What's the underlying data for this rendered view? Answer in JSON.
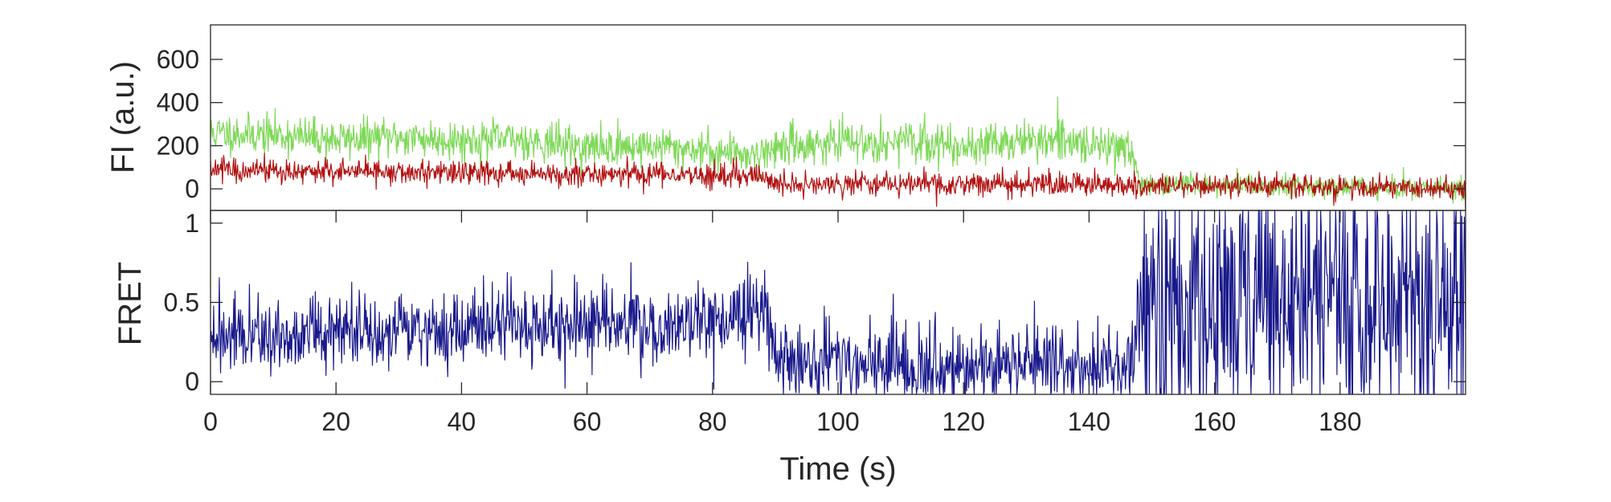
{
  "chart_data": [
    {
      "type": "line",
      "panel": "top",
      "title": "",
      "xlabel": "",
      "ylabel": "FI (a.u.)",
      "xlim": [
        0,
        200
      ],
      "ylim": [
        -100,
        760
      ],
      "yticks": [
        0,
        200,
        400,
        600
      ],
      "ytick_labels": [
        "0",
        "200",
        "400",
        "600"
      ],
      "grid": false,
      "colors": {
        "donor": "#7ed957",
        "acceptor": "#b31212"
      },
      "series": [
        {
          "color_key": "donor",
          "x": [
            0,
            10,
            20,
            30,
            40,
            50,
            60,
            70,
            80,
            88,
            90,
            100,
            110,
            120,
            130,
            140,
            147,
            148,
            160,
            170,
            180,
            190,
            200
          ],
          "y": [
            260,
            250,
            230,
            240,
            225,
            230,
            190,
            200,
            175,
            160,
            195,
            215,
            220,
            200,
            225,
            210,
            190,
            15,
            20,
            15,
            10,
            5,
            0
          ]
        },
        {
          "color_key": "acceptor",
          "x": [
            0,
            10,
            20,
            30,
            40,
            50,
            60,
            70,
            80,
            88,
            90,
            100,
            110,
            120,
            130,
            140,
            147,
            148,
            160,
            170,
            180,
            190,
            200
          ],
          "y": [
            90,
            85,
            80,
            75,
            75,
            70,
            70,
            70,
            60,
            60,
            20,
            20,
            25,
            20,
            25,
            20,
            15,
            15,
            15,
            12,
            10,
            5,
            -10
          ]
        }
      ]
    },
    {
      "type": "line",
      "panel": "bottom",
      "title": "",
      "xlabel": "Time (s)",
      "ylabel": "FRET",
      "xlim": [
        0,
        200
      ],
      "ylim": [
        -0.08,
        1.08
      ],
      "xticks": [
        0,
        20,
        40,
        60,
        80,
        100,
        120,
        140,
        160,
        180
      ],
      "xtick_labels": [
        "0",
        "20",
        "40",
        "60",
        "80",
        "100",
        "120",
        "140",
        "160",
        "180"
      ],
      "yticks": [
        0,
        0.5,
        1
      ],
      "ytick_labels": [
        "0",
        "0.5",
        "1"
      ],
      "grid": false,
      "colors": {
        "fret": "#1a1a8c"
      },
      "series": [
        {
          "color_key": "fret",
          "x": [
            0,
            10,
            20,
            30,
            40,
            50,
            60,
            70,
            80,
            88,
            90,
            100,
            110,
            120,
            130,
            140,
            147,
            148,
            160,
            170,
            180,
            190,
            200
          ],
          "y": [
            0.27,
            0.3,
            0.3,
            0.32,
            0.34,
            0.35,
            0.38,
            0.36,
            0.38,
            0.45,
            0.15,
            0.12,
            0.1,
            0.12,
            0.1,
            0.1,
            0.1,
            0.5,
            0.5,
            0.5,
            0.5,
            0.5,
            0.5
          ]
        }
      ]
    }
  ]
}
